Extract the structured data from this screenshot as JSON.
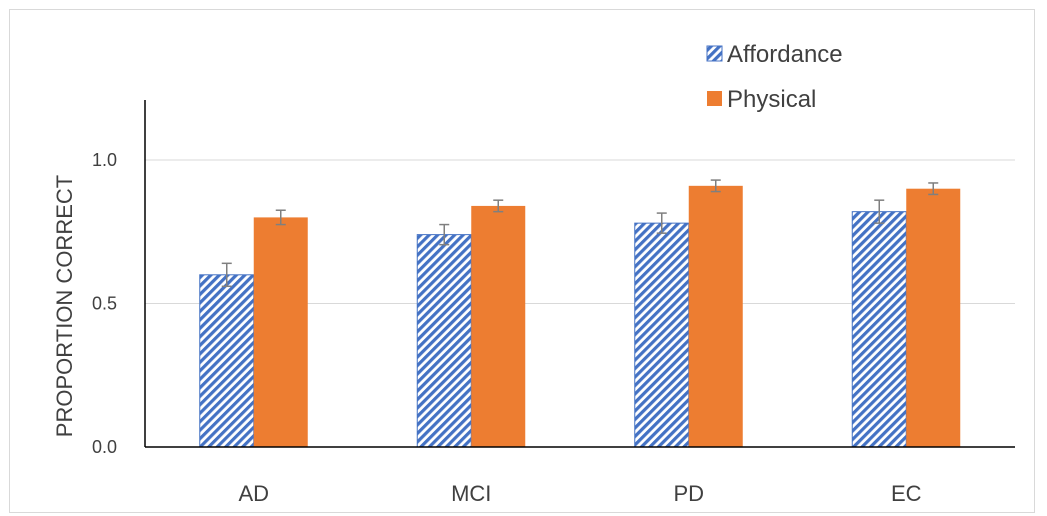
{
  "chart_data": {
    "type": "bar",
    "title": "",
    "xlabel": "",
    "ylabel": "PROPORTION CORRECT",
    "categories": [
      "AD",
      "MCI",
      "PD",
      "EC"
    ],
    "ylim": [
      0,
      1.0
    ],
    "yticks": [
      "0.0",
      "0.5",
      "1.0"
    ],
    "grid": true,
    "legend_position": "top-right",
    "series": [
      {
        "name": "Affordance",
        "values": [
          0.6,
          0.74,
          0.78,
          0.82
        ],
        "errors": [
          0.04,
          0.035,
          0.035,
          0.04
        ],
        "color": "#4472c4",
        "pattern": "diagonal-hatch"
      },
      {
        "name": "Physical",
        "values": [
          0.8,
          0.84,
          0.91,
          0.9
        ],
        "errors": [
          0.025,
          0.02,
          0.02,
          0.02
        ],
        "color": "#ed7d31",
        "pattern": "solid"
      }
    ]
  }
}
